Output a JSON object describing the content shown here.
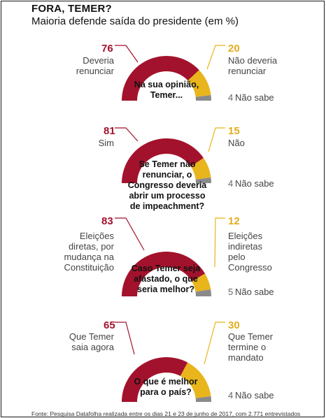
{
  "header": {
    "title": "FORA, TEMER?",
    "subtitle": "Maioria defende saída do presidente (em %)"
  },
  "colors": {
    "red": "#a3122c",
    "yellow": "#e8b51c",
    "gray": "#8a8a8a"
  },
  "chart_data": [
    {
      "type": "pie",
      "question": "Na sua opinião, Temer...",
      "values": [
        76,
        20,
        4
      ],
      "categories": [
        "Deveria renunciar",
        "Não deveria renunciar",
        "Não sabe"
      ]
    },
    {
      "type": "pie",
      "question": "Se Temer não renunciar, o Congresso deveria abrir um processo de impeachment?",
      "values": [
        81,
        15,
        4
      ],
      "categories": [
        "Sim",
        "Não",
        "Não sabe"
      ]
    },
    {
      "type": "pie",
      "question": "Caso Temer seja afastado, o que seria melhor?",
      "values": [
        83,
        12,
        5
      ],
      "categories": [
        "Eleições diretas, por mudança na Constituição",
        "Eleições indiretas pelo Congresso",
        "Não sabe"
      ]
    },
    {
      "type": "pie",
      "question": "O que é melhor para o país?",
      "values": [
        65,
        30,
        4
      ],
      "categories": [
        "Que Temer saia agora",
        "Que Temer termine o mandato",
        "Não sabe"
      ]
    }
  ],
  "footer": {
    "source": "Fonte: Pesquisa Datafolha realizada entre os dias 21 e 23 de junho de 2017, com 2.771 entrevistados"
  }
}
